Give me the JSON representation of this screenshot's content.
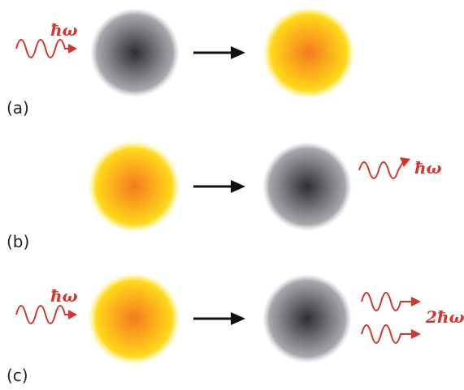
{
  "panels": [
    {
      "label": "(a)",
      "photon_in": "ħω"
    },
    {
      "label": "(b)",
      "photon_out": "ħω"
    },
    {
      "label": "(c)",
      "photon_in": "ħω",
      "photon_out": "2ħω"
    }
  ]
}
